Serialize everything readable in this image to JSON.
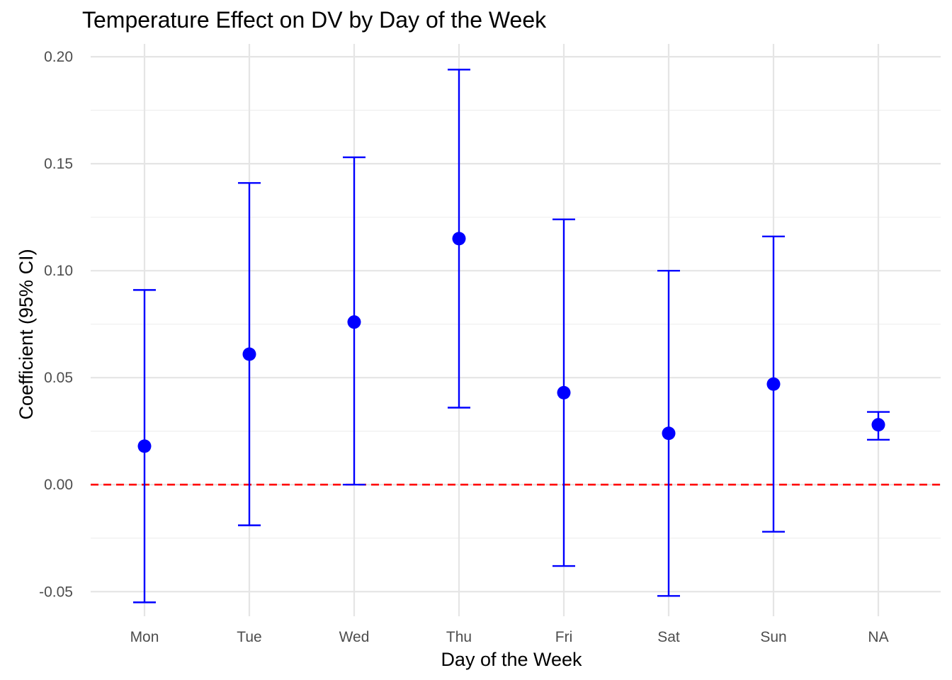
{
  "chart_data": {
    "type": "scatter",
    "title": "Temperature Effect on DV by Day of the Week",
    "xlabel": "Day of the Week",
    "ylabel": "Coefficient (95% CI)",
    "categories": [
      "Mon",
      "Tue",
      "Wed",
      "Thu",
      "Fri",
      "Sat",
      "Sun",
      "NA"
    ],
    "series": [
      {
        "values": [
          0.018,
          0.061,
          0.076,
          0.115,
          0.043,
          0.024,
          0.047,
          0.028
        ],
        "ci_lower": [
          -0.055,
          -0.019,
          0.0,
          0.036,
          -0.038,
          -0.052,
          -0.022,
          0.021
        ],
        "ci_upper": [
          0.091,
          0.141,
          0.153,
          0.194,
          0.124,
          0.1,
          0.116,
          0.034
        ]
      }
    ],
    "ylim": [
      -0.0615,
      0.206
    ],
    "yticks": [
      -0.05,
      0.0,
      0.05,
      0.1,
      0.15,
      0.2
    ],
    "ytick_labels": [
      "-0.05",
      "0.00",
      "0.05",
      "0.10",
      "0.15",
      "0.20"
    ],
    "reference_line": {
      "y": 0.0,
      "style": "dashed",
      "color": "#ff0000"
    },
    "point_color": "#0000ff",
    "grid": true,
    "legend": "none"
  }
}
